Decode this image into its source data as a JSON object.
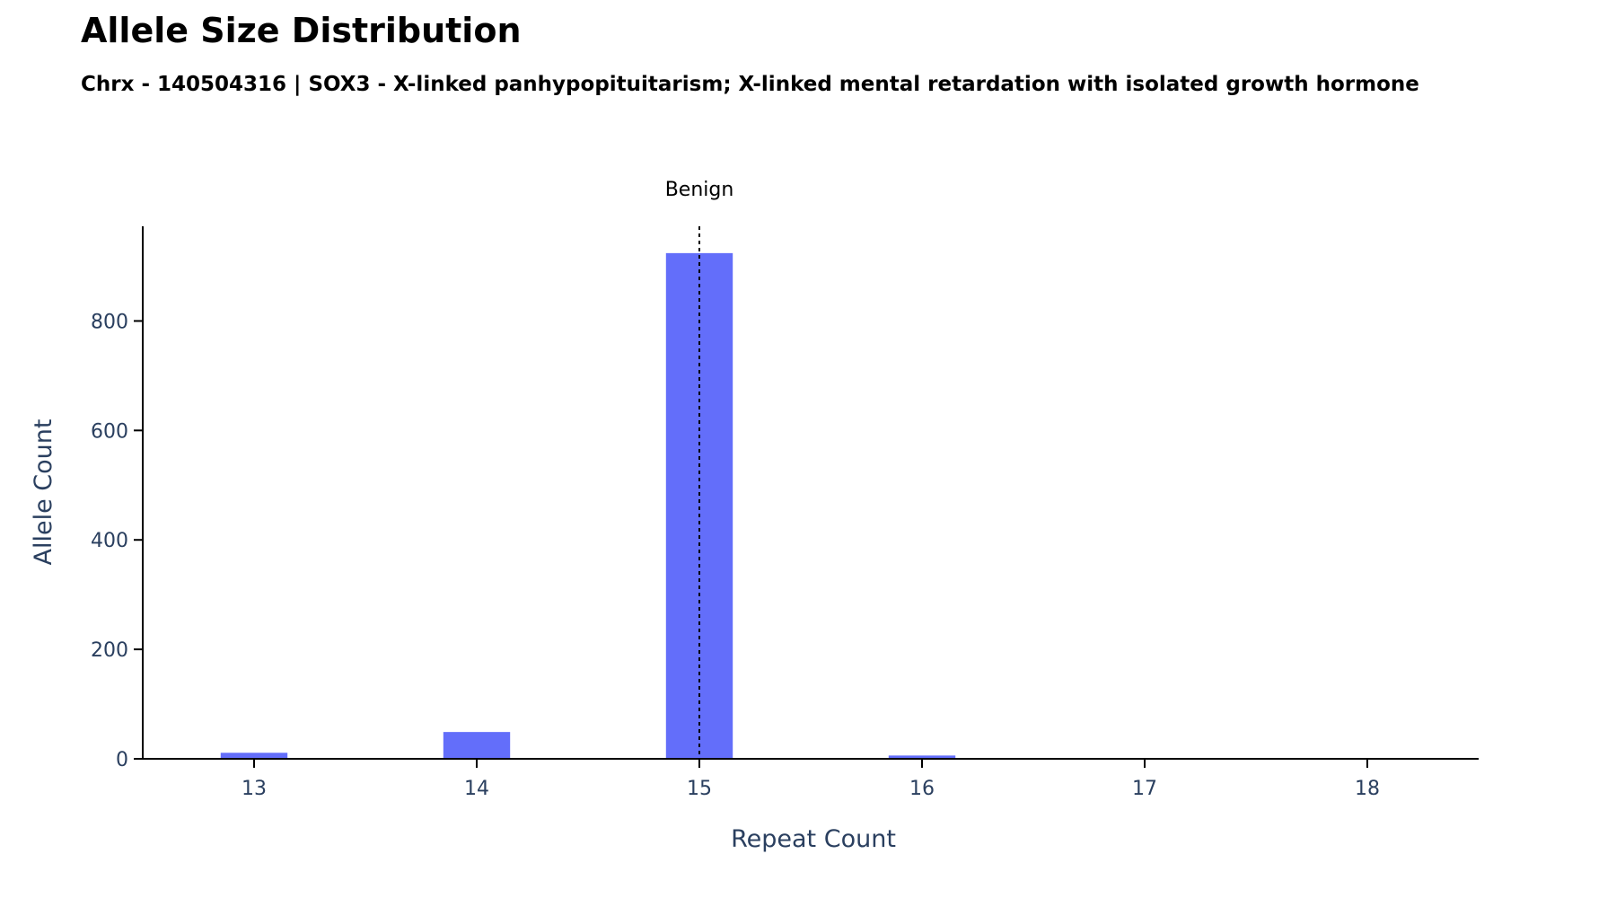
{
  "chart_data": {
    "type": "bar",
    "title": "Allele Size Distribution",
    "subtitle": "Chrx - 140504316 | SOX3 - X-linked panhypopituitarism; X-linked mental retardation with isolated growth hormone",
    "xlabel": "Repeat Count",
    "ylabel": "Allele Count",
    "categories": [
      13,
      14,
      15,
      16,
      17,
      18
    ],
    "values": [
      11,
      49,
      924,
      6,
      0,
      0
    ],
    "xlim": [
      12.5,
      18.5
    ],
    "ylim": [
      0,
      973
    ],
    "yticks": [
      0,
      200,
      400,
      600,
      800
    ],
    "bar_color": "#636efa",
    "grid": false,
    "annotations": [
      {
        "x": 15,
        "label": "Benign",
        "line_style": "dashed",
        "color": "#000000"
      }
    ]
  }
}
